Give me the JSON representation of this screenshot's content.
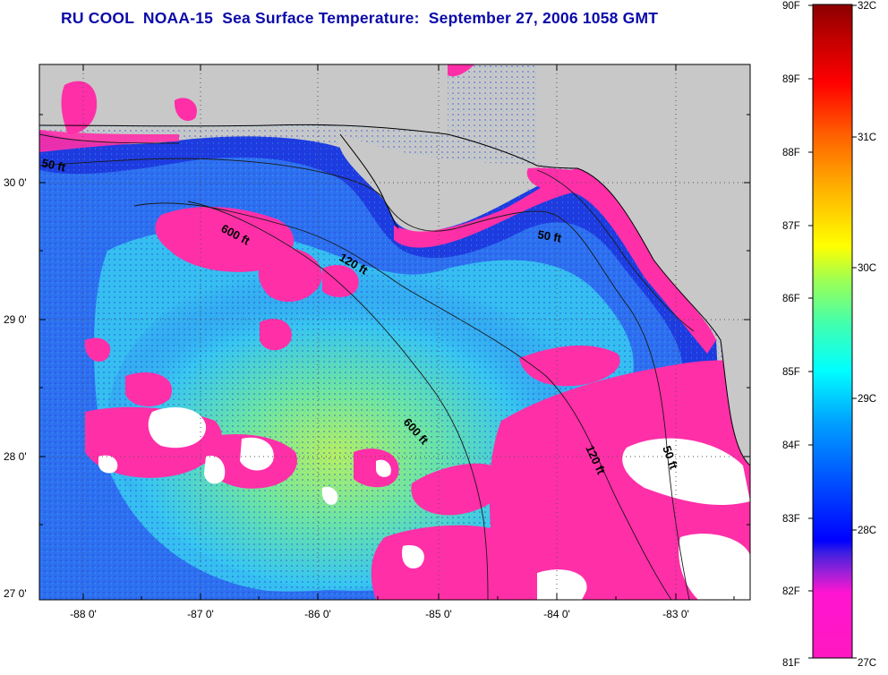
{
  "title": "RU COOL  NOAA-15  Sea Surface Temperature:  September 27, 2006 1058 GMT",
  "colors": {
    "land": "#c8c8c8",
    "cold_pink": "#ff2fa8",
    "deep_blue": "#1e3be0",
    "mid_blue": "#2f73f0",
    "cyan": "#37c6f0",
    "green": "#6ee6a0",
    "yellow_green": "#b8f060",
    "cloud": "#ffffff"
  },
  "map": {
    "lat_labels": [
      "30 0'",
      "29 0'",
      "28 0'",
      "27 0'"
    ],
    "lon_labels": [
      "-88 0'",
      "-87 0'",
      "-86 0'",
      "-85 0'",
      "-84 0'",
      "-83 0'"
    ]
  },
  "contours": [
    "50 ft",
    "600 ft",
    "120 ft",
    "50 ft",
    "600 ft",
    "120 ft",
    "50 ft"
  ],
  "colorbar": {
    "f_labels": [
      "90F",
      "89F",
      "88F",
      "87F",
      "86F",
      "85F",
      "84F",
      "83F",
      "82F",
      "81F"
    ],
    "c_labels": [
      "32C",
      "31C",
      "30C",
      "29C",
      "28C",
      "27C"
    ],
    "stops": [
      "#ff19c0",
      "#ff14d2",
      "#c020d8",
      "#6030e0",
      "#0000ff",
      "#0050ff",
      "#00a0ff",
      "#00ffff",
      "#40ffb0",
      "#a0ff50",
      "#ffff00",
      "#ffb000",
      "#ff6000",
      "#ff0000",
      "#c00000",
      "#8b0000"
    ]
  }
}
